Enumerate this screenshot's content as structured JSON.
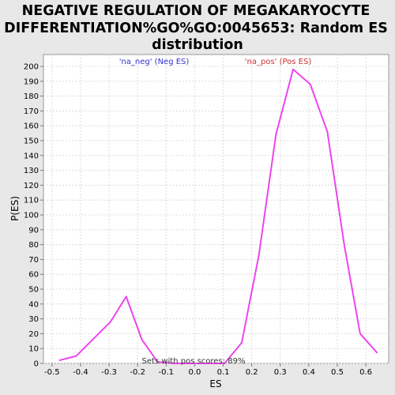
{
  "chart_data": {
    "type": "line",
    "title_lines": [
      "NEGATIVE REGULATION OF MEGAKARYOCYTE",
      "DIFFERENTIATION%GO%GO:0045653: Random ES",
      "distribution"
    ],
    "xlabel": "ES",
    "ylabel": "P(ES)",
    "xlim": [
      -0.53,
      0.68
    ],
    "ylim": [
      0,
      208
    ],
    "x_ticks": [
      -0.5,
      -0.4,
      -0.3,
      -0.2,
      -0.1,
      0.0,
      0.1,
      0.2,
      0.3,
      0.4,
      0.5,
      0.6
    ],
    "x_tick_labels": [
      "-0.5",
      "-0.4",
      "-0.3",
      "-0.2",
      "-0.1",
      "0.0",
      "0.1",
      "0.2",
      "0.3",
      "0.4",
      "0.5",
      "0.6"
    ],
    "y_ticks": [
      0,
      10,
      20,
      30,
      40,
      50,
      60,
      70,
      80,
      90,
      100,
      110,
      120,
      130,
      140,
      150,
      160,
      170,
      180,
      190,
      200
    ],
    "grid": true,
    "series": [
      {
        "color": "#ee44ee",
        "x": [
          -0.475,
          -0.415,
          -0.295,
          -0.24,
          -0.185,
          -0.13,
          -0.07,
          -0.01,
          0.05,
          0.105,
          0.165,
          0.225,
          0.285,
          0.345,
          0.405,
          0.465,
          0.525,
          0.58,
          0.64
        ],
        "y": [
          2,
          5,
          28,
          45,
          16,
          1,
          0,
          0,
          0,
          0,
          14,
          73,
          154,
          198,
          188,
          156,
          79,
          20,
          7
        ]
      }
    ],
    "annotations": {
      "neg_label": "'na_neg' (Neg ES)",
      "neg_color": "#3333cc",
      "pos_label": "'na_pos' (Pos ES)",
      "pos_color": "#cc3333",
      "bottom_text": "Sets with pos scores: 89%"
    }
  }
}
